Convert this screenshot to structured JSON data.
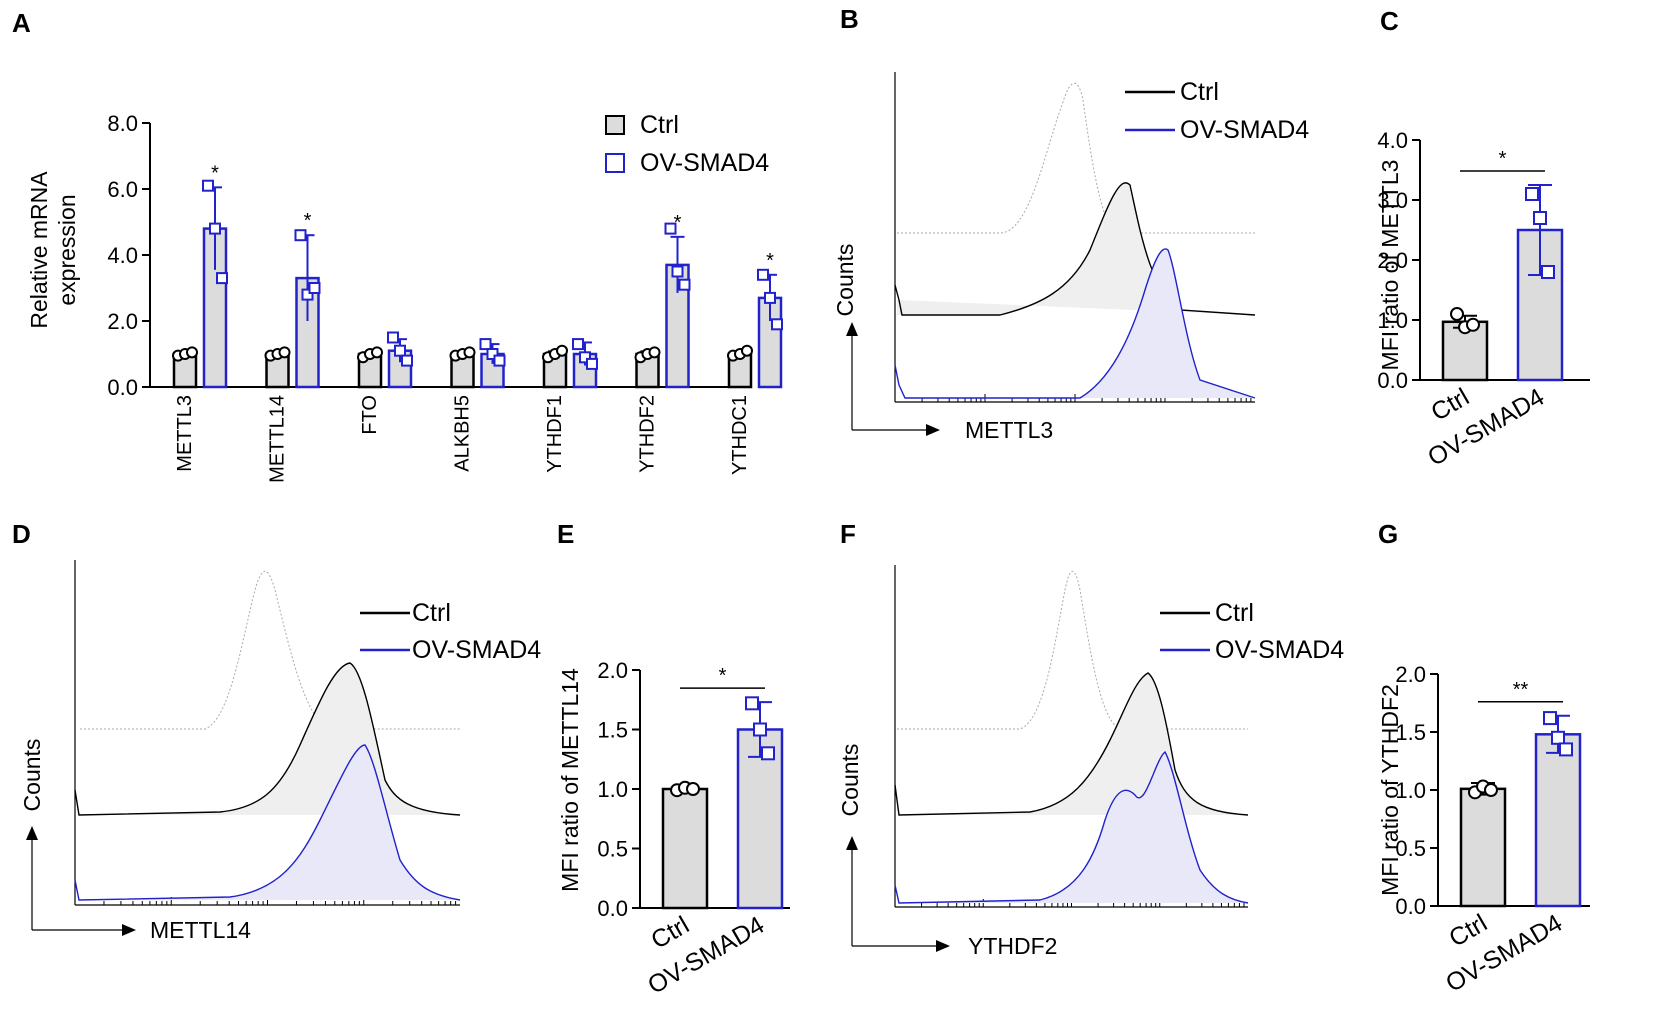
{
  "panels": {
    "A": "A",
    "B": "B",
    "C": "C",
    "D": "D",
    "E": "E",
    "F": "F",
    "G": "G"
  },
  "colors": {
    "ctrl": "#000000",
    "ov": "#2222cc",
    "bar_fill": "#dcdcdc",
    "hist_ctrl_fill": "#efefef",
    "hist_ov_fill": "#e8e8f8",
    "isotype": "#aaaaaa"
  },
  "legend": {
    "ctrl": "Ctrl",
    "ov": "OV-SMAD4"
  },
  "flow": {
    "B": {
      "counts_label": "Counts",
      "x_label": "METTL3"
    },
    "D": {
      "counts_label": "Counts",
      "x_label": "METTL14"
    },
    "F": {
      "counts_label": "Counts",
      "x_label": "YTHDF2"
    }
  },
  "chart_data": [
    {
      "id": "A",
      "type": "bar",
      "ylabel_line1": "Relative mRNA",
      "ylabel_line2": "expression",
      "ylim": [
        0,
        8
      ],
      "yticks": [
        "0.0",
        "2.0",
        "4.0",
        "6.0",
        "8.0"
      ],
      "ytick_values": [
        0,
        2,
        4,
        6,
        8
      ],
      "categories": [
        "METTL3",
        "METTL14",
        "FTO",
        "ALKBH5",
        "YTHDF1",
        "YTHDF2",
        "YTHDC1"
      ],
      "series": [
        {
          "name": "Ctrl",
          "values": [
            1.0,
            1.0,
            1.0,
            1.0,
            1.0,
            1.0,
            1.0
          ],
          "errors": [
            0.05,
            0.05,
            0.05,
            0.05,
            0.08,
            0.08,
            0.08
          ],
          "points": [
            [
              0.95,
              1.0,
              1.05
            ],
            [
              0.95,
              1.0,
              1.05
            ],
            [
              0.9,
              1.0,
              1.05
            ],
            [
              0.95,
              1.0,
              1.05
            ],
            [
              0.9,
              1.0,
              1.1
            ],
            [
              0.9,
              1.0,
              1.05
            ],
            [
              0.95,
              1.0,
              1.1
            ]
          ]
        },
        {
          "name": "OV-SMAD4",
          "values": [
            4.8,
            3.3,
            1.1,
            1.0,
            1.0,
            3.7,
            2.7
          ],
          "errors": [
            1.25,
            1.3,
            0.35,
            0.3,
            0.35,
            0.85,
            0.7
          ],
          "points": [
            [
              6.1,
              4.8,
              3.3
            ],
            [
              4.6,
              2.8,
              3.0
            ],
            [
              1.5,
              1.1,
              0.8
            ],
            [
              1.3,
              1.0,
              0.8
            ],
            [
              1.3,
              0.9,
              0.7
            ],
            [
              4.8,
              3.5,
              3.1
            ],
            [
              3.4,
              2.7,
              1.9
            ]
          ]
        }
      ],
      "significance": [
        "*",
        "*",
        "",
        "",
        "",
        "*",
        "*"
      ]
    },
    {
      "id": "C",
      "type": "bar",
      "ylabel": "MFI  ratio of METTL3",
      "ylim": [
        0,
        4
      ],
      "yticks": [
        "0.0",
        "1.0",
        "2.0",
        "3.0",
        "4.0"
      ],
      "ytick_values": [
        0,
        1,
        2,
        3,
        4
      ],
      "categories": [
        "Ctrl",
        "OV-SMAD4"
      ],
      "values": [
        0.97,
        2.5
      ],
      "errors": [
        0.1,
        0.75
      ],
      "points": [
        [
          1.1,
          0.88,
          0.92
        ],
        [
          3.1,
          2.7,
          1.8
        ]
      ],
      "significance": "*"
    },
    {
      "id": "E",
      "type": "bar",
      "ylabel": "MFI ratio of METTL14",
      "ylim": [
        0,
        2
      ],
      "yticks": [
        "0.0",
        "0.5",
        "1.0",
        "1.5",
        "2.0"
      ],
      "ytick_values": [
        0,
        0.5,
        1,
        1.5,
        2
      ],
      "categories": [
        "Ctrl",
        "OV-SMAD4"
      ],
      "values": [
        1.0,
        1.5
      ],
      "errors": [
        0.02,
        0.23
      ],
      "points": [
        [
          0.99,
          1.01,
          1.0
        ],
        [
          1.72,
          1.5,
          1.3
        ]
      ],
      "significance": "*"
    },
    {
      "id": "G",
      "type": "bar",
      "ylabel": "MFI ratio of YTHDF2",
      "ylim": [
        0,
        2
      ],
      "yticks": [
        "0.0",
        "0.5",
        "1.0",
        "1.5",
        "2.0"
      ],
      "ytick_values": [
        0,
        0.5,
        1,
        1.5,
        2
      ],
      "categories": [
        "Ctrl",
        "OV-SMAD4"
      ],
      "values": [
        1.01,
        1.48
      ],
      "errors": [
        0.05,
        0.16
      ],
      "points": [
        [
          0.98,
          1.03,
          1.0
        ],
        [
          1.62,
          1.45,
          1.35
        ]
      ],
      "significance": "**"
    }
  ]
}
